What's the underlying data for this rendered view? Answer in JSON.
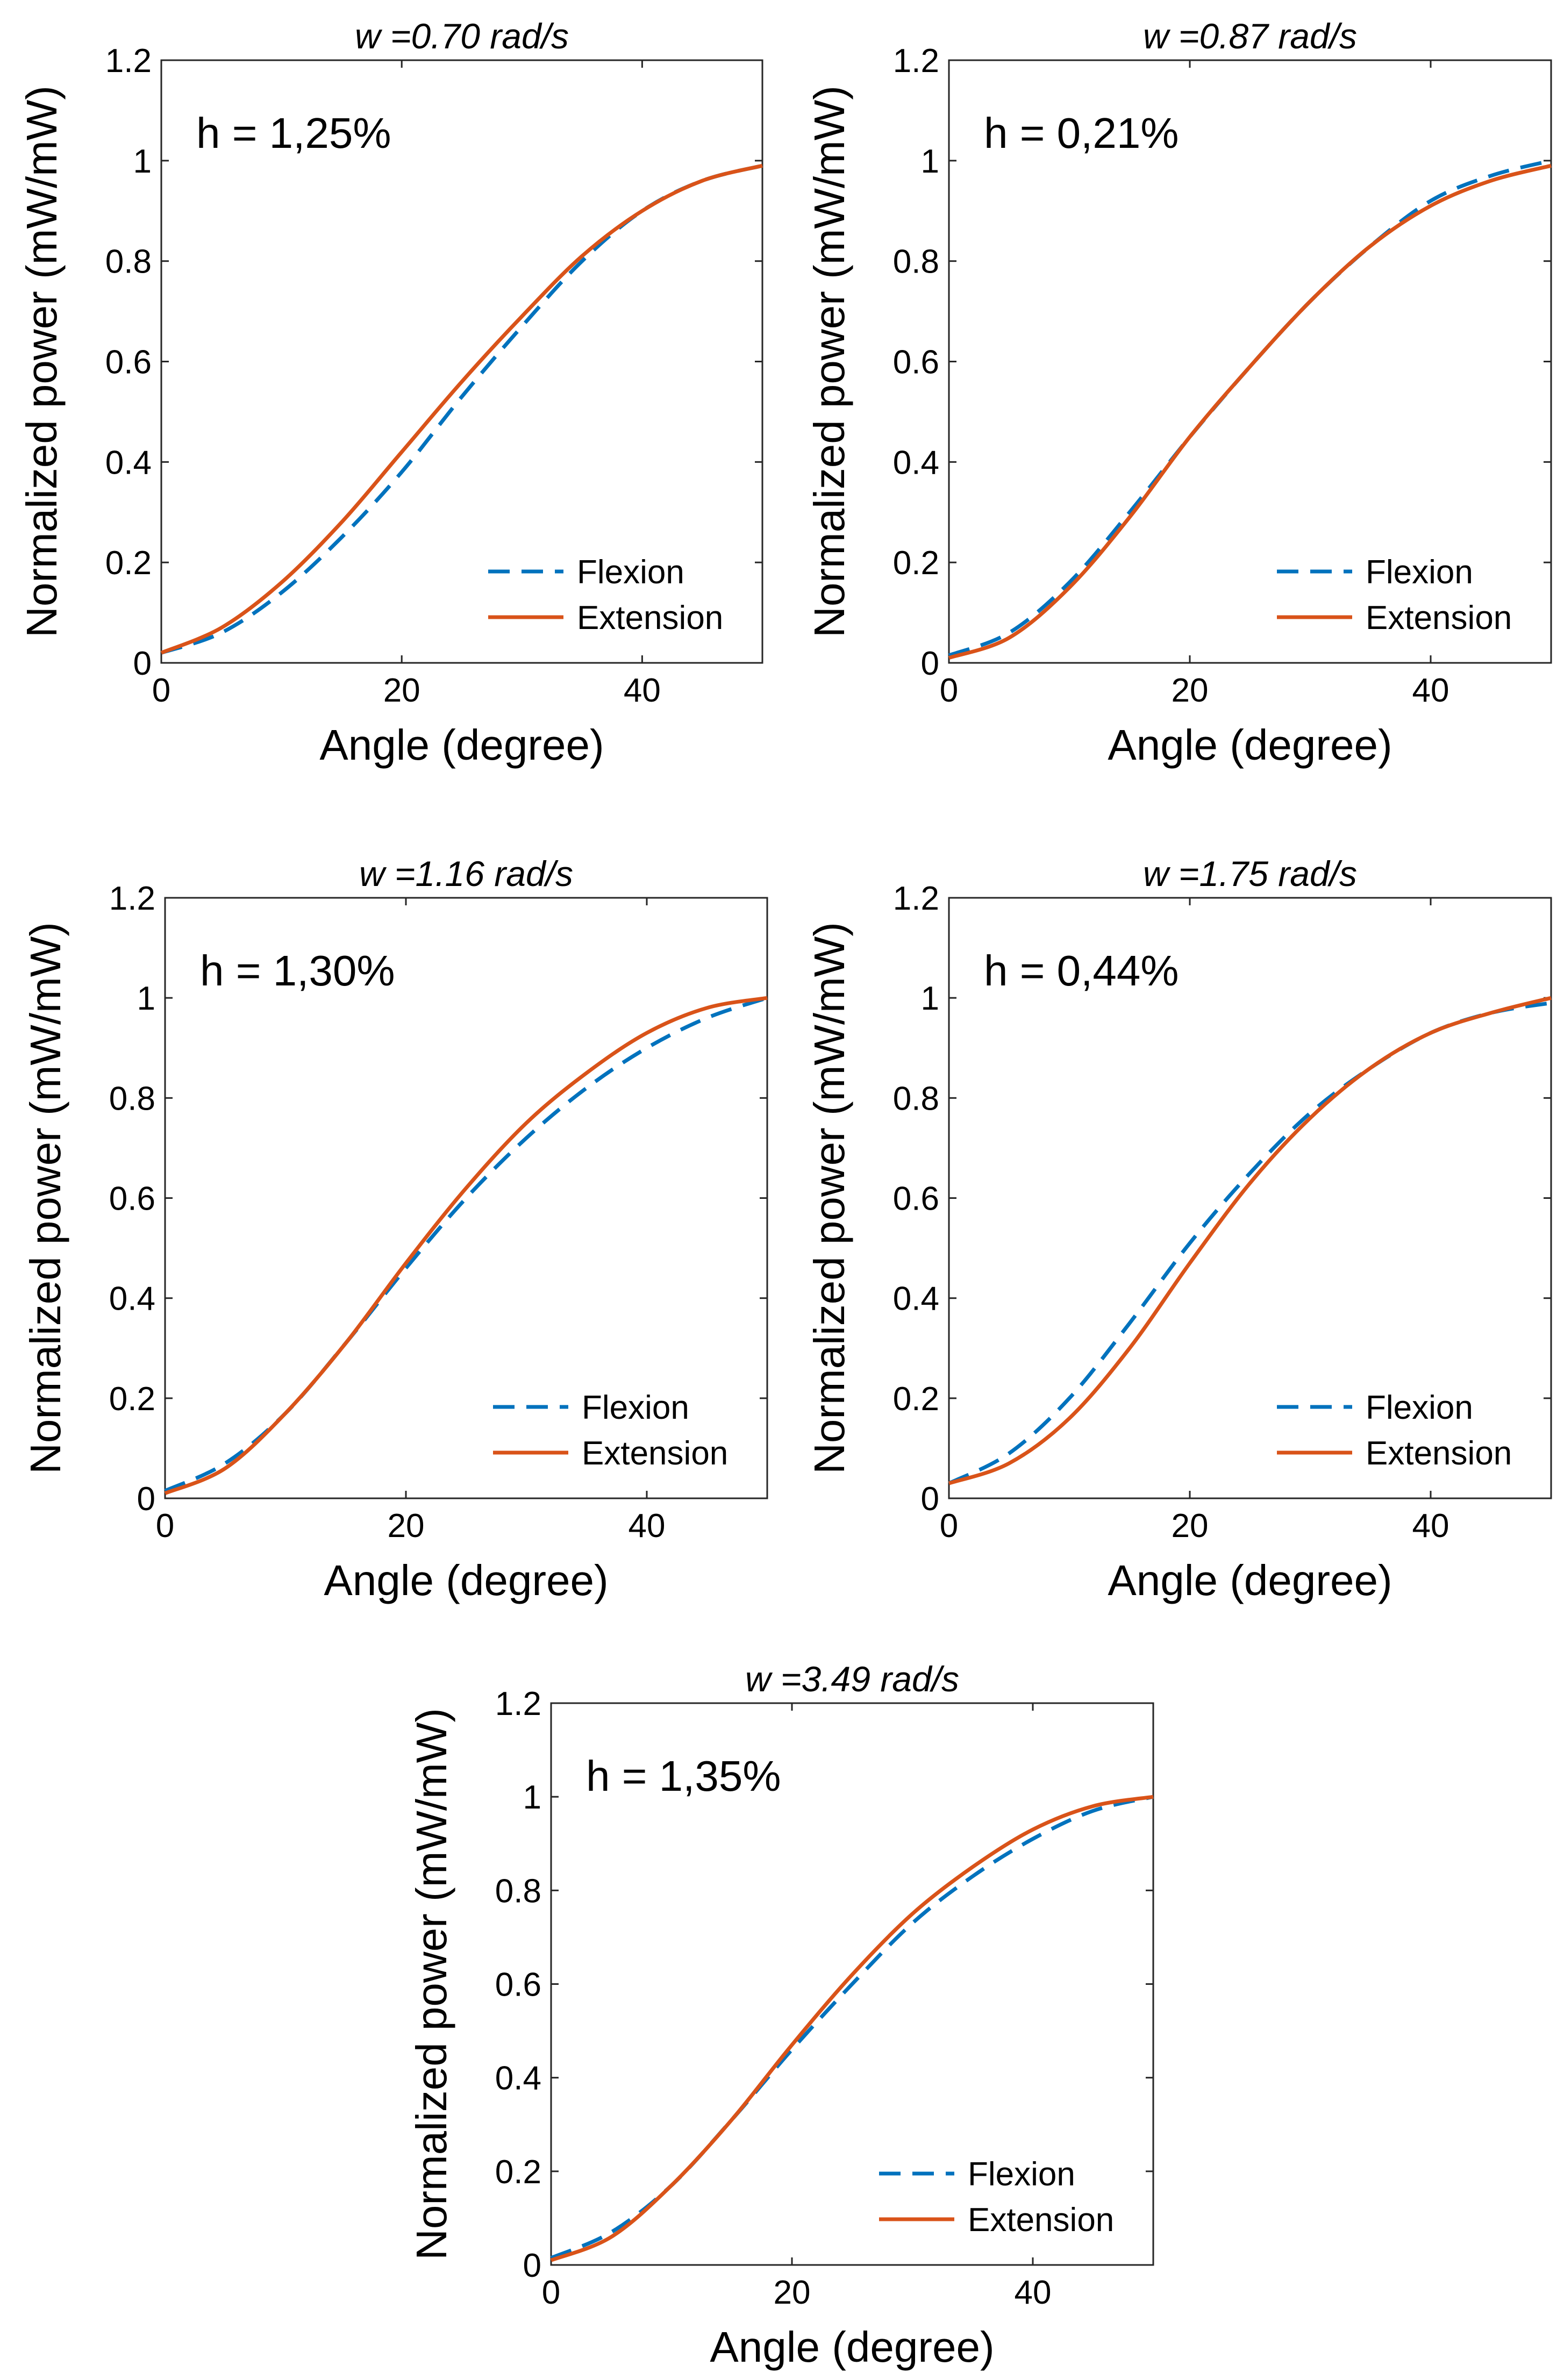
{
  "chart_data": [
    {
      "type": "line",
      "title": "w =0.70 rad/s",
      "annotation": "h = 1,25%",
      "xlabel": "Angle (degree)",
      "ylabel": "Normalized power (mW/mW)",
      "xlim": [
        0,
        50
      ],
      "ylim": [
        0,
        1.2
      ],
      "xticks": [
        0,
        20,
        40
      ],
      "yticks": [
        0,
        0.2,
        0.4,
        0.6,
        0.8,
        1,
        1.2
      ],
      "xtick_labels": [
        "0",
        "20",
        "40"
      ],
      "ytick_labels": [
        "0",
        "0.2",
        "0.4",
        "0.6",
        "0.8",
        "1",
        "1.2"
      ],
      "legend_position": "bottom-right",
      "x": [
        0,
        5,
        10,
        15,
        20,
        25,
        30,
        35,
        40,
        45,
        50
      ],
      "series": [
        {
          "name": "Flexion",
          "style": "dashed",
          "color": "#0072BD",
          "values": [
            0.02,
            0.06,
            0.14,
            0.25,
            0.38,
            0.53,
            0.67,
            0.8,
            0.9,
            0.96,
            0.99
          ]
        },
        {
          "name": "Extension",
          "style": "solid",
          "color": "#D95319",
          "values": [
            0.02,
            0.07,
            0.16,
            0.28,
            0.42,
            0.56,
            0.69,
            0.81,
            0.9,
            0.96,
            0.99
          ]
        }
      ]
    },
    {
      "type": "line",
      "title": "w =0.87 rad/s",
      "annotation": "h = 0,21%",
      "xlabel": "Angle (degree)",
      "ylabel": "Normalized power (mW/mW)",
      "xlim": [
        0,
        50
      ],
      "ylim": [
        0,
        1.2
      ],
      "xticks": [
        0,
        20,
        40
      ],
      "yticks": [
        0,
        0.2,
        0.4,
        0.6,
        0.8,
        1,
        1.2
      ],
      "xtick_labels": [
        "0",
        "20",
        "40"
      ],
      "ytick_labels": [
        "0",
        "0.2",
        "0.4",
        "0.6",
        "0.8",
        "1",
        "1.2"
      ],
      "legend_position": "bottom-right",
      "x": [
        0,
        5,
        10,
        15,
        20,
        25,
        30,
        35,
        40,
        45,
        50
      ],
      "series": [
        {
          "name": "Flexion",
          "style": "dashed",
          "color": "#0072BD",
          "values": [
            0.015,
            0.06,
            0.16,
            0.3,
            0.45,
            0.59,
            0.72,
            0.83,
            0.92,
            0.97,
            1.0
          ]
        },
        {
          "name": "Extension",
          "style": "solid",
          "color": "#D95319",
          "values": [
            0.01,
            0.05,
            0.15,
            0.29,
            0.45,
            0.59,
            0.72,
            0.83,
            0.91,
            0.96,
            0.99
          ]
        }
      ]
    },
    {
      "type": "line",
      "title": "w =1.16 rad/s",
      "annotation": "h = 1,30%",
      "xlabel": "Angle (degree)",
      "ylabel": "Normalized power (mW/mW)",
      "xlim": [
        0,
        50
      ],
      "ylim": [
        0,
        1.2
      ],
      "xticks": [
        0,
        20,
        40
      ],
      "yticks": [
        0,
        0.2,
        0.4,
        0.6,
        0.8,
        1,
        1.2
      ],
      "xtick_labels": [
        "0",
        "20",
        "40"
      ],
      "ytick_labels": [
        "0",
        "0.2",
        "0.4",
        "0.6",
        "0.8",
        "1",
        "1.2"
      ],
      "legend_position": "bottom-right",
      "x": [
        0,
        5,
        10,
        15,
        20,
        25,
        30,
        35,
        40,
        45,
        50
      ],
      "series": [
        {
          "name": "Flexion",
          "style": "dashed",
          "color": "#0072BD",
          "values": [
            0.015,
            0.07,
            0.17,
            0.31,
            0.46,
            0.6,
            0.72,
            0.82,
            0.9,
            0.96,
            1.0
          ]
        },
        {
          "name": "Extension",
          "style": "solid",
          "color": "#D95319",
          "values": [
            0.01,
            0.06,
            0.17,
            0.31,
            0.47,
            0.62,
            0.75,
            0.85,
            0.93,
            0.98,
            1.0
          ]
        }
      ]
    },
    {
      "type": "line",
      "title": "w =1.75 rad/s",
      "annotation": "h = 0,44%",
      "xlabel": "Angle (degree)",
      "ylabel": "Normalized power (mW/mW)",
      "xlim": [
        0,
        50
      ],
      "ylim": [
        0,
        1.2
      ],
      "xticks": [
        0,
        20,
        40
      ],
      "yticks": [
        0,
        0.2,
        0.4,
        0.6,
        0.8,
        1,
        1.2
      ],
      "xtick_labels": [
        "0",
        "20",
        "40"
      ],
      "ytick_labels": [
        "0",
        "0.2",
        "0.4",
        "0.6",
        "0.8",
        "1",
        "1.2"
      ],
      "legend_position": "bottom-right",
      "x": [
        0,
        5,
        10,
        15,
        20,
        25,
        30,
        35,
        40,
        45,
        50
      ],
      "series": [
        {
          "name": "Flexion",
          "style": "dashed",
          "color": "#0072BD",
          "values": [
            0.03,
            0.09,
            0.2,
            0.35,
            0.51,
            0.65,
            0.77,
            0.86,
            0.93,
            0.97,
            0.99
          ]
        },
        {
          "name": "Extension",
          "style": "solid",
          "color": "#D95319",
          "values": [
            0.03,
            0.07,
            0.16,
            0.3,
            0.47,
            0.63,
            0.76,
            0.86,
            0.93,
            0.97,
            1.0
          ]
        }
      ]
    },
    {
      "type": "line",
      "title": "w =3.49 rad/s",
      "annotation": "h = 1,35%",
      "xlabel": "Angle (degree)",
      "ylabel": "Normalized power (mW/mW)",
      "xlim": [
        0,
        50
      ],
      "ylim": [
        0,
        1.2
      ],
      "xticks": [
        0,
        20,
        40
      ],
      "yticks": [
        0,
        0.2,
        0.4,
        0.6,
        0.8,
        1,
        1.2
      ],
      "xtick_labels": [
        "0",
        "20",
        "40"
      ],
      "ytick_labels": [
        "0",
        "0.2",
        "0.4",
        "0.6",
        "0.8",
        "1",
        "1.2"
      ],
      "legend_position": "bottom-right",
      "x": [
        0,
        5,
        10,
        15,
        20,
        25,
        30,
        35,
        40,
        45,
        50
      ],
      "series": [
        {
          "name": "Flexion",
          "style": "dashed",
          "color": "#0072BD",
          "values": [
            0.015,
            0.07,
            0.17,
            0.31,
            0.46,
            0.6,
            0.73,
            0.83,
            0.91,
            0.97,
            1.0
          ]
        },
        {
          "name": "Extension",
          "style": "solid",
          "color": "#D95319",
          "values": [
            0.01,
            0.06,
            0.17,
            0.31,
            0.47,
            0.62,
            0.75,
            0.85,
            0.93,
            0.98,
            1.0
          ]
        }
      ]
    }
  ]
}
